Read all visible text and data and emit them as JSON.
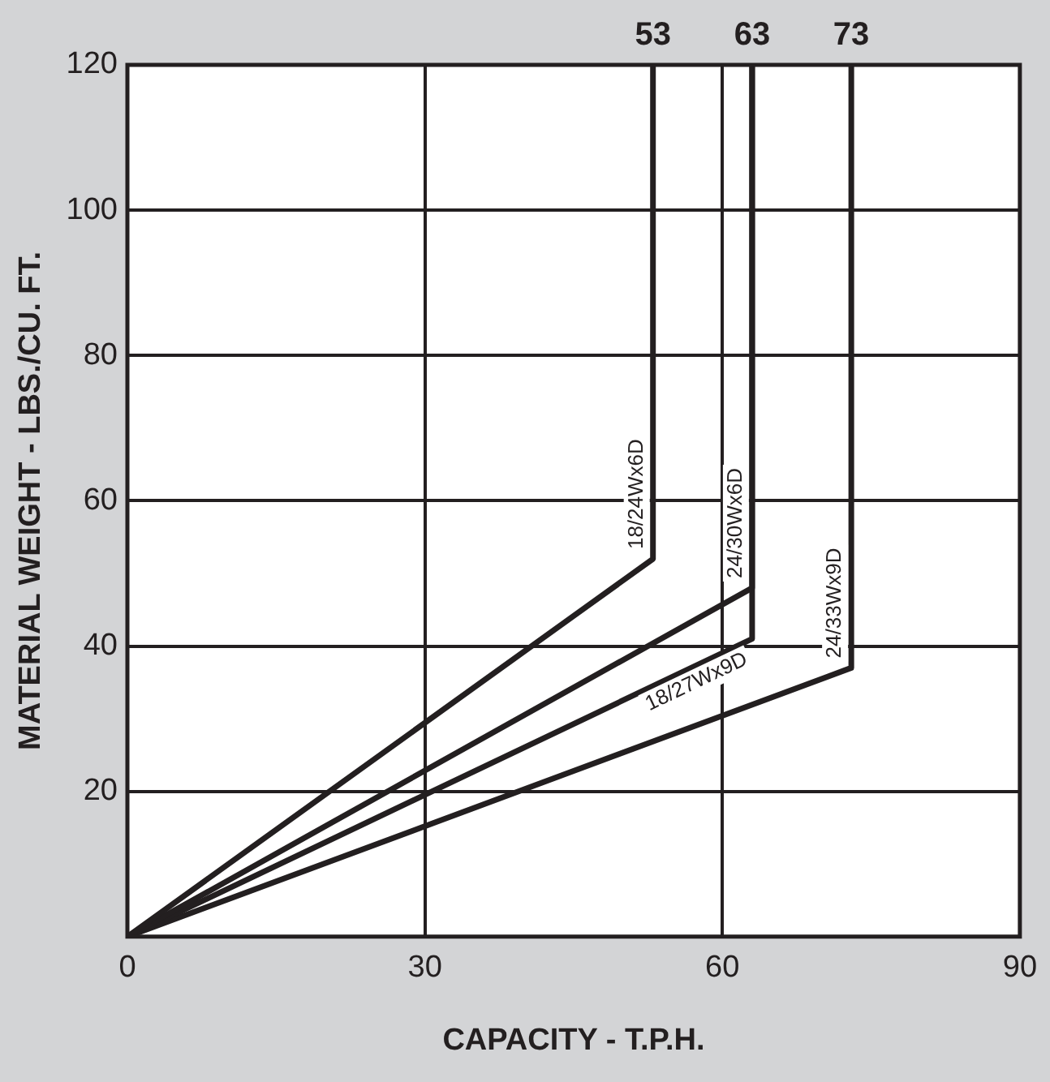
{
  "chart_data": {
    "type": "line",
    "xlabel": "CAPACITY - T.P.H.",
    "ylabel": "MATERIAL WEIGHT - LBS./CU. FT.",
    "xlim": [
      0,
      90
    ],
    "xticks": [
      0,
      30,
      60,
      90
    ],
    "ylim": [
      0,
      120
    ],
    "yticks": [
      {
        "value": 0,
        "label": null
      },
      20,
      40,
      60,
      80,
      100,
      120
    ],
    "grid": true,
    "legend": false,
    "marker": "none",
    "line_style": "solid",
    "series": [
      {
        "name": "18/24Wx6D",
        "color": "#231f20",
        "x": [
          0,
          53,
          53
        ],
        "values": [
          0,
          52,
          120
        ]
      },
      {
        "name": "24/30Wx6D",
        "color": "#231f20",
        "x": [
          0,
          63,
          63
        ],
        "values": [
          0,
          48,
          120
        ]
      },
      {
        "name": "18/27Wx9D",
        "color": "#231f20",
        "x": [
          0,
          63,
          63
        ],
        "values": [
          0,
          41,
          120
        ]
      },
      {
        "name": "24/33Wx9D",
        "color": "#231f20",
        "x": [
          0,
          73,
          73
        ],
        "values": [
          0,
          37,
          120
        ]
      }
    ],
    "annotations": [
      {
        "text": "53",
        "x": 53,
        "y": 120
      },
      {
        "text": "63",
        "x": 63,
        "y": 120
      },
      {
        "text": "73",
        "x": 73,
        "y": 120
      }
    ]
  }
}
